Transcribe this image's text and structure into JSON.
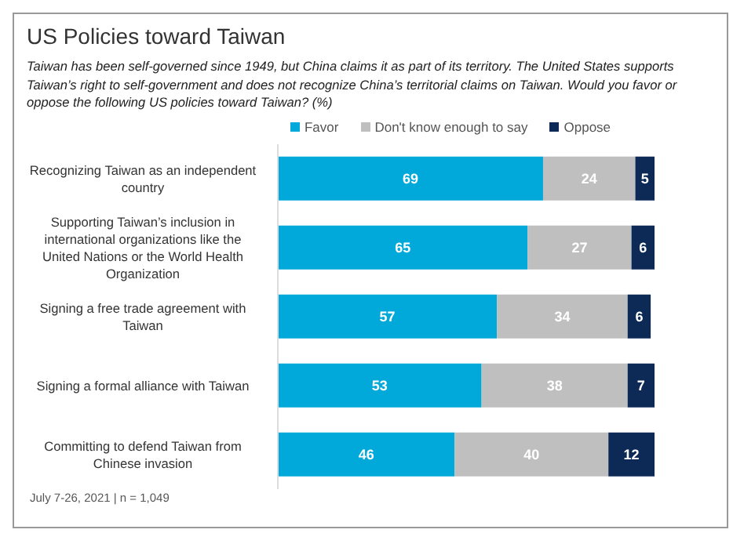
{
  "chart_data": {
    "type": "bar",
    "orientation": "horizontal",
    "stacked": true,
    "data_labels": true,
    "grid": false,
    "legend": "top",
    "title": "US Policies toward Taiwan",
    "subtitle": "Taiwan has been self-governed since 1949, but China claims it as part of its territory. The United States supports Taiwan’s right to self-government and does not recognize China’s territorial claims on Taiwan. Would you favor or oppose the following US policies toward Taiwan? (%)",
    "annotations": [
      "July 7-26, 2021 | n = 1,049"
    ],
    "categories": [
      "Recognizing Taiwan as an independent country",
      "Supporting Taiwan’s inclusion in international organizations like the United Nations or the World Health Organization",
      "Signing a free trade agreement with Taiwan",
      "Signing a formal alliance with Taiwan",
      "Committing to defend Taiwan from Chinese invasion"
    ],
    "series": [
      {
        "name": "Favor",
        "color": "#00a9d9",
        "values": [
          69,
          65,
          57,
          53,
          46
        ]
      },
      {
        "name": "Don't know enough to say",
        "color": "#bfbfbf",
        "values": [
          24,
          27,
          34,
          38,
          40
        ]
      },
      {
        "name": "Oppose",
        "color": "#0d2a57",
        "values": [
          5,
          6,
          6,
          7,
          12
        ]
      }
    ]
  }
}
